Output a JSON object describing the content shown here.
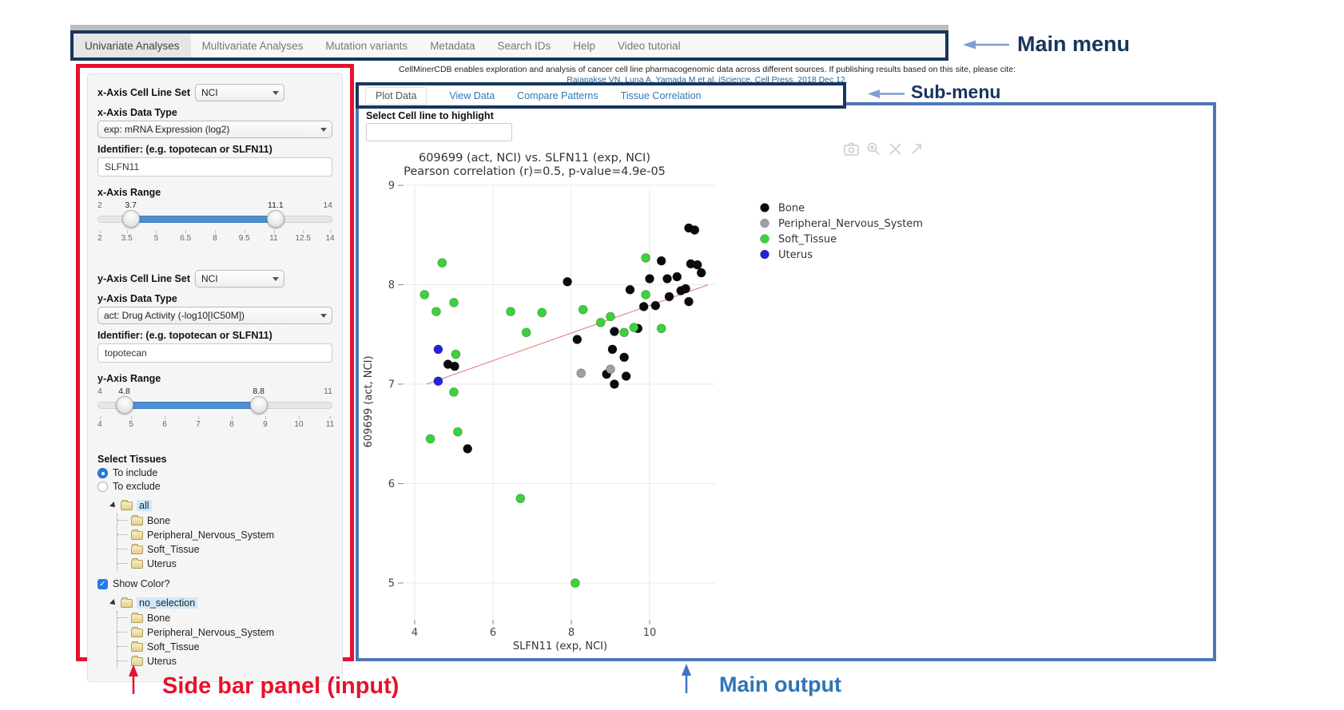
{
  "annotations": {
    "main_menu_label": "Main menu",
    "sub_menu_label": "Sub-menu",
    "sidebar_label": "Side bar panel (input)",
    "main_output_label": "Main output",
    "navy_color": "#17365d",
    "red_color": "#e8112d",
    "blue_color": "#2e75b6",
    "arrow_blue_color": "#7e9fd0"
  },
  "main_menu": {
    "items": [
      {
        "label": "Univariate Analyses",
        "active": true
      },
      {
        "label": "Multivariate Analyses",
        "active": false
      },
      {
        "label": "Mutation variants",
        "active": false
      },
      {
        "label": "Metadata",
        "active": false
      },
      {
        "label": "Search IDs",
        "active": false
      },
      {
        "label": "Help",
        "active": false
      },
      {
        "label": "Video tutorial",
        "active": false
      }
    ]
  },
  "header": {
    "description": "CellMinerCDB enables exploration and analysis of cancer cell line pharmacogenomic data across different sources. If publishing results based on this site, please cite:",
    "citation": "Rajapakse VN, Luna A, Yamada M et al, iScience, Cell Press, 2018 Dec 12."
  },
  "sub_menu": {
    "tabs": [
      {
        "label": "Plot Data",
        "active": true
      },
      {
        "label": "View Data",
        "active": false
      },
      {
        "label": "Compare Patterns",
        "active": false
      },
      {
        "label": "Tissue Correlation",
        "active": false
      }
    ]
  },
  "sidebar": {
    "x_axis": {
      "cell_line_set_label": "x-Axis Cell Line Set",
      "cell_line_set_value": "NCI",
      "data_type_label": "x-Axis Data Type",
      "data_type_value": "exp: mRNA Expression (log2)",
      "identifier_label": "Identifier: (e.g. topotecan or SLFN11)",
      "identifier_value": "SLFN11",
      "range_label": "x-Axis Range",
      "range": {
        "min": "2",
        "max": "14",
        "from": "3.7",
        "to": "11.1",
        "ticks": [
          "2",
          "3.5",
          "5",
          "6.5",
          "8",
          "9.5",
          "11",
          "12.5",
          "14"
        ]
      }
    },
    "y_axis": {
      "cell_line_set_label": "y-Axis Cell Line Set",
      "cell_line_set_value": "NCI",
      "data_type_label": "y-Axis Data Type",
      "data_type_value": "act: Drug Activity (-log10[IC50M])",
      "identifier_label": "Identifier: (e.g. topotecan or SLFN11)",
      "identifier_value": "topotecan",
      "range_label": "y-Axis Range",
      "range": {
        "min": "4",
        "max": "11",
        "from": "4.8",
        "to": "8.8",
        "ticks": [
          "4",
          "5",
          "6",
          "7",
          "8",
          "9",
          "10",
          "11"
        ]
      }
    },
    "tissues": {
      "label": "Select Tissues",
      "radio_include": "To include",
      "radio_exclude": "To exclude",
      "include_selected": true,
      "tree_all": {
        "root": "all",
        "children": [
          "Bone",
          "Peripheral_Nervous_System",
          "Soft_Tissue",
          "Uterus"
        ]
      },
      "show_color_label": "Show Color?",
      "show_color_checked": true,
      "tree_color": {
        "root": "no_selection",
        "children": [
          "Bone",
          "Peripheral_Nervous_System",
          "Soft_Tissue",
          "Uterus"
        ]
      }
    },
    "accent_color": "#4d8fd1",
    "highlight_color": "#cfe9fa"
  },
  "output": {
    "highlight_label": "Select Cell line to highlight",
    "highlight_value": "",
    "toolbar_icons": [
      "camera-icon",
      "zoom-in-icon",
      "pan-icon",
      "reset-axes-icon"
    ]
  },
  "chart_data": {
    "type": "scatter",
    "title": "609699 (act, NCI) vs. SLFN11 (exp, NCI)",
    "subtitle": "Pearson correlation (r)=0.5, p-value=4.9e-05",
    "xlabel": "SLFN11 (exp, NCI)",
    "ylabel": "609699 (act, NCI)",
    "xlim": [
      3.4,
      11.7
    ],
    "ylim": [
      4.65,
      9.05
    ],
    "xticks": [
      4,
      6,
      8,
      10
    ],
    "yticks": [
      5,
      6,
      7,
      8,
      9
    ],
    "grid": true,
    "legend_position": "right",
    "trend_line": {
      "x1": 4.3,
      "y1": 7.0,
      "x2": 11.5,
      "y2": 8.0,
      "color": "#e87272"
    },
    "series": [
      {
        "name": "Bone",
        "color": "#0a0a0a",
        "points": [
          [
            4.85,
            7.2
          ],
          [
            5.02,
            7.18
          ],
          [
            5.35,
            6.35
          ],
          [
            7.9,
            8.03
          ],
          [
            8.15,
            7.45
          ],
          [
            9.5,
            7.95
          ],
          [
            10.0,
            8.06
          ],
          [
            10.3,
            8.24
          ],
          [
            10.45,
            8.06
          ],
          [
            10.7,
            8.08
          ],
          [
            10.8,
            7.94
          ],
          [
            10.92,
            7.96
          ],
          [
            11.0,
            8.57
          ],
          [
            11.15,
            8.55
          ],
          [
            11.05,
            8.21
          ],
          [
            11.22,
            8.2
          ],
          [
            11.32,
            8.12
          ],
          [
            11.0,
            7.83
          ],
          [
            10.5,
            7.88
          ],
          [
            10.15,
            7.79
          ],
          [
            9.85,
            7.78
          ],
          [
            9.7,
            7.56
          ],
          [
            9.1,
            7.53
          ],
          [
            9.05,
            7.35
          ],
          [
            9.35,
            7.27
          ],
          [
            8.9,
            7.1
          ],
          [
            9.1,
            7.0
          ],
          [
            9.4,
            7.08
          ]
        ]
      },
      {
        "name": "Peripheral_Nervous_System",
        "color": "#a0a0a0",
        "points": [
          [
            8.25,
            7.11
          ],
          [
            9.0,
            7.15
          ]
        ]
      },
      {
        "name": "Soft_Tissue",
        "color": "#3bd23b",
        "points": [
          [
            4.7,
            8.22
          ],
          [
            4.25,
            7.9
          ],
          [
            5.0,
            7.82
          ],
          [
            4.55,
            7.73
          ],
          [
            6.45,
            7.73
          ],
          [
            7.25,
            7.72
          ],
          [
            6.85,
            7.52
          ],
          [
            5.05,
            7.3
          ],
          [
            5.0,
            6.92
          ],
          [
            5.1,
            6.52
          ],
          [
            4.4,
            6.45
          ],
          [
            6.7,
            5.85
          ],
          [
            8.1,
            5.0
          ],
          [
            9.9,
            8.27
          ],
          [
            9.9,
            7.9
          ],
          [
            9.35,
            7.52
          ],
          [
            9.6,
            7.57
          ],
          [
            8.75,
            7.62
          ],
          [
            9.0,
            7.68
          ],
          [
            10.3,
            7.56
          ],
          [
            8.3,
            7.75
          ]
        ]
      },
      {
        "name": "Uterus",
        "color": "#2222dd",
        "points": [
          [
            4.6,
            7.35
          ],
          [
            4.6,
            7.03
          ]
        ]
      }
    ]
  }
}
